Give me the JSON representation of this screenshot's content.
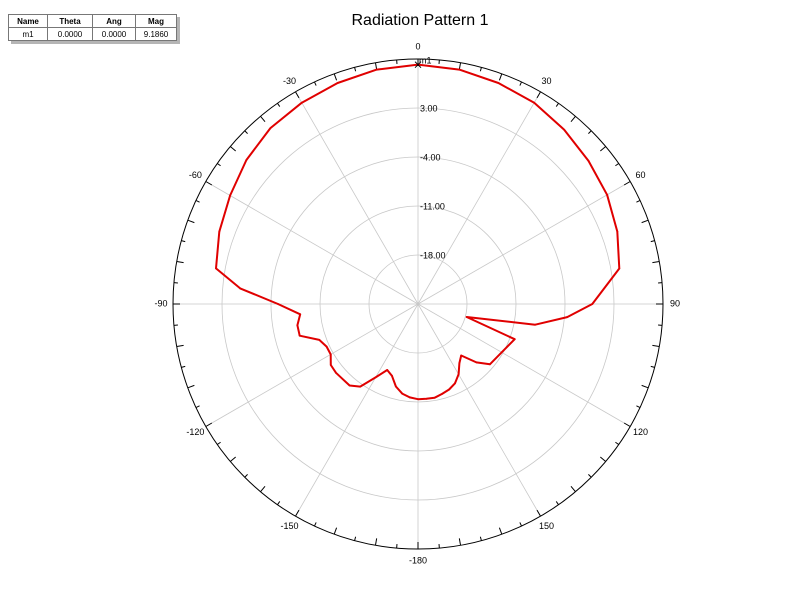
{
  "marker_table": {
    "headers": [
      "Name",
      "Theta",
      "Ang",
      "Mag"
    ],
    "rows": [
      [
        "m1",
        "0.0000",
        "0.0000",
        "9.1860"
      ]
    ]
  },
  "chart_data": {
    "type": "polar-line",
    "title": "Radiation Pattern 1",
    "angle_labels": [
      "0",
      "30",
      "60",
      "90",
      "120",
      "150",
      "-180",
      "-150",
      "-120",
      "-90",
      "-60",
      "-30"
    ],
    "radial_labels": [
      "3.00",
      "-4.00",
      "-11.00",
      "-18.00"
    ],
    "radial_min": -25,
    "radial_max": 10,
    "radial_ticks": [
      -18,
      -11,
      -4,
      3
    ],
    "marker": {
      "name": "m1",
      "theta": 0,
      "mag": 9.186
    },
    "series": [
      {
        "color": "#e00000",
        "theta": [
          0,
          10,
          20,
          30,
          40,
          50,
          60,
          70,
          80,
          90,
          95,
          100,
          105,
          110,
          120,
          130,
          135,
          140,
          145,
          150,
          155,
          160,
          165,
          170,
          175,
          180,
          185,
          190,
          195,
          200,
          205,
          210,
          215,
          220,
          225,
          230,
          235,
          240,
          245,
          250,
          255,
          260,
          265,
          270,
          275,
          280,
          290,
          300,
          310,
          320,
          330,
          340,
          350
        ],
        "r": [
          9.2,
          9.0,
          8.6,
          8.2,
          7.5,
          6.8,
          6.2,
          5.3,
          4.2,
          -0.1,
          -3.6,
          -8.0,
          -17.8,
          -10.3,
          -11.2,
          -11.6,
          -13.2,
          -15.4,
          -14.7,
          -13.4,
          -12.5,
          -12.0,
          -11.7,
          -11.4,
          -11.4,
          -11.4,
          -11.6,
          -12.0,
          -12.8,
          -14.1,
          -14.6,
          -12.9,
          -10.6,
          -9.8,
          -9.8,
          -9.7,
          -9.8,
          -10.6,
          -10.6,
          -10.0,
          -7.5,
          -7.5,
          -8.1,
          -5.0,
          0.5,
          4.3,
          5.2,
          6.0,
          7.0,
          7.8,
          8.2,
          8.6,
          9.0
        ]
      }
    ]
  }
}
